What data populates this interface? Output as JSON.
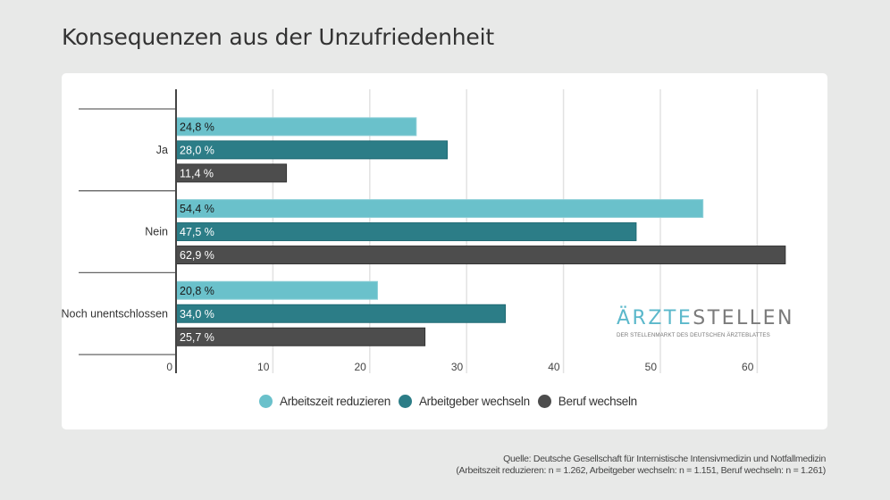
{
  "header": {
    "title": "Konsequenzen aus der Unzufriedenheit"
  },
  "chart_data": {
    "type": "bar",
    "orientation": "horizontal",
    "title": "Konsequenzen aus der Unzufriedenheit",
    "categories": [
      "Ja",
      "Nein",
      "Noch unentschlossen"
    ],
    "series": [
      {
        "name": "Arbeitszeit reduzieren",
        "color": "#6ac1cb",
        "values": [
          24.8,
          54.4,
          20.8
        ],
        "labels": [
          "24,8 %",
          "54,4 %",
          "20,8 %"
        ]
      },
      {
        "name": "Arbeitgeber wechseln",
        "color": "#2c7d87",
        "values": [
          28.0,
          47.5,
          34.0
        ],
        "labels": [
          "28,0 %",
          "47,5 %",
          "34,0 %"
        ]
      },
      {
        "name": "Beruf wechseln",
        "color": "#4d4d4d",
        "values": [
          11.4,
          62.9,
          25.7
        ],
        "labels": [
          "11,4 %",
          "62,9 %",
          "25,7 %"
        ]
      }
    ],
    "xlim": [
      0,
      63
    ],
    "xticks": [
      0,
      10,
      20,
      30,
      40,
      50,
      60
    ],
    "xtick_labels": [
      "0",
      "10",
      "20",
      "30",
      "40",
      "50",
      "60"
    ],
    "xlabel": "",
    "ylabel": "",
    "grid": true,
    "legend_position": "bottom"
  },
  "legend": {
    "items": [
      {
        "label": "Arbeitszeit reduzieren",
        "color": "#6ac1cb"
      },
      {
        "label": "Arbeitgeber wechseln",
        "color": "#2c7d87"
      },
      {
        "label": "Beruf wechseln",
        "color": "#4d4d4d"
      }
    ]
  },
  "logo": {
    "part1": "ÄRZTE",
    "part2": "STELLEN",
    "tagline": "DER STELLENMARKT DES DEUTSCHEN ÄRZTEBLATTES"
  },
  "source": {
    "line1": "Quelle: Deutsche Gesellschaft für Internistische Intensivmedizin und Notfallmedizin",
    "line2": "(Arbeitszeit reduzieren: n = 1.262, Arbeitgeber wechseln: n = 1.151, Beruf wechseln: n = 1.261)"
  }
}
